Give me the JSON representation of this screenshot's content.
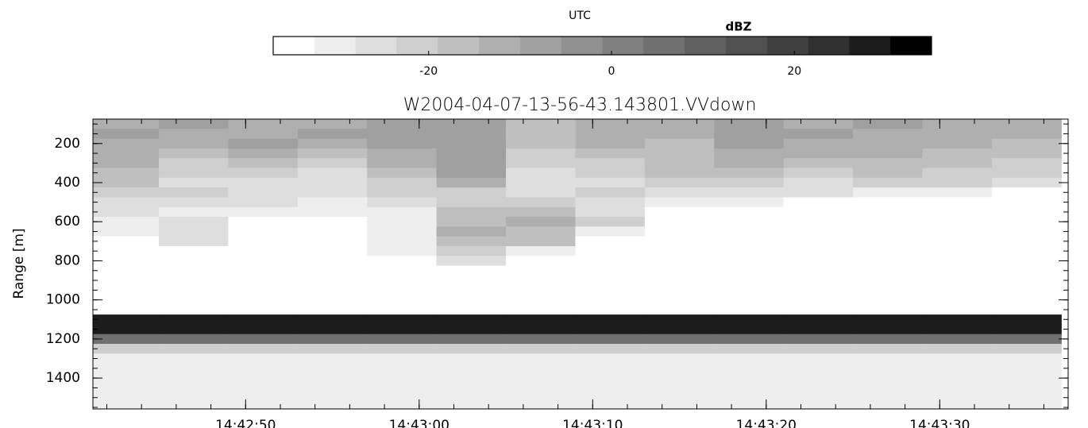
{
  "chart_data": {
    "type": "heatmap",
    "title": "W2004-04-07-13-56-43.143801.VVdown",
    "x_label": "UTC",
    "y_label": "Range [m]",
    "colorbar_label": "dBZ",
    "clim": [
      -37,
      35
    ],
    "cticks": [
      -20,
      0,
      20
    ],
    "colors": [
      "#ffffff",
      "#eeeeee",
      "#dedede",
      "#cfcfcf",
      "#bfbfbf",
      "#afafaf",
      "#a0a0a0",
      "#909090",
      "#808080",
      "#707070",
      "#606060",
      "#505050",
      "#404040",
      "#303030",
      "#1c1c1c",
      "#000000"
    ],
    "xlim": [
      41.2,
      97.4
    ],
    "xticks": [
      {
        "value": 50,
        "label": "14:42:50"
      },
      {
        "value": 60,
        "label": "14:43:00"
      },
      {
        "value": 70,
        "label": "14:43:10"
      },
      {
        "value": 80,
        "label": "14:43:20"
      },
      {
        "value": 90,
        "label": "14:43:30"
      }
    ],
    "ylim": [
      75,
      1558
    ],
    "yticks": [
      200,
      400,
      600,
      800,
      1000,
      1200,
      1400
    ],
    "y_inverted": true,
    "x": [
      43,
      47,
      51,
      55,
      59,
      63,
      67,
      71,
      75,
      79,
      83,
      87,
      91,
      95
    ],
    "y": [
      100,
      150,
      200,
      250,
      300,
      350,
      400,
      450,
      500,
      550,
      600,
      650,
      700,
      750,
      800,
      850,
      900,
      950,
      1000,
      1050,
      1100,
      1150,
      1200,
      1250,
      1300,
      1350,
      1400,
      1450,
      1500,
      1550
    ],
    "z": [
      [
        -12,
        -10,
        -14,
        -12,
        -10,
        -8,
        -18,
        -14,
        -12,
        -10,
        -12,
        -10,
        -14,
        -12
      ],
      [
        -10,
        -12,
        -12,
        -10,
        -8,
        -6,
        -16,
        -12,
        -14,
        -8,
        -10,
        -12,
        -12,
        -14
      ],
      [
        -14,
        -14,
        -10,
        -14,
        -10,
        -6,
        -18,
        -14,
        -16,
        -10,
        -12,
        -14,
        -12,
        -16
      ],
      [
        -12,
        -18,
        -14,
        -16,
        -12,
        -8,
        -20,
        -16,
        -18,
        -12,
        -14,
        -12,
        -16,
        -18
      ],
      [
        -14,
        -20,
        -16,
        -20,
        -14,
        -8,
        -22,
        -20,
        -16,
        -14,
        -16,
        -16,
        -18,
        -20
      ],
      [
        -16,
        -22,
        -22,
        -24,
        -16,
        -10,
        -24,
        -22,
        -18,
        -18,
        -20,
        -18,
        -20,
        -22
      ],
      [
        -18,
        -24,
        -26,
        -26,
        -20,
        -12,
        -26,
        -24,
        -20,
        -22,
        -24,
        -22,
        -22,
        -28
      ],
      [
        -20,
        -22,
        -24,
        -26,
        -22,
        -20,
        -24,
        -22,
        -24,
        -26,
        -28,
        -30,
        -32,
        -34
      ],
      [
        -24,
        -26,
        -28,
        -30,
        -26,
        -22,
        -20,
        -26,
        -30,
        -32,
        -34,
        -34,
        -35,
        -35
      ],
      [
        -28,
        -30,
        -32,
        -32,
        -30,
        -18,
        -16,
        -24,
        -34,
        -35,
        -35,
        -35,
        -35,
        -35
      ],
      [
        -30,
        -28,
        -33,
        -34,
        -32,
        -16,
        -14,
        -20,
        -35,
        -35,
        -35,
        -35,
        -35,
        -35
      ],
      [
        -30,
        -24,
        -34,
        -34,
        -30,
        -14,
        -16,
        -30,
        -35,
        -35,
        -35,
        -35,
        -35,
        -35
      ],
      [
        -33,
        -26,
        -35,
        -35,
        -30,
        -16,
        -18,
        -33,
        -35,
        -35,
        -35,
        -35,
        -35,
        -35
      ],
      [
        -35,
        -34,
        -35,
        -35,
        -32,
        -20,
        -30,
        -35,
        -35,
        -35,
        -35,
        -35,
        -35,
        -35
      ],
      [
        -35,
        -35,
        -35,
        -35,
        -34,
        -28,
        -34,
        -35,
        -35,
        -35,
        -35,
        -35,
        -35,
        -35
      ],
      [
        -35,
        -35,
        -35,
        -35,
        -35,
        -35,
        -35,
        -35,
        -35,
        -35,
        -35,
        -35,
        -35,
        -35
      ],
      [
        -35,
        -35,
        -35,
        -35,
        -35,
        -35,
        -35,
        -35,
        -35,
        -35,
        -35,
        -35,
        -35,
        -35
      ],
      [
        -35,
        -35,
        -35,
        -35,
        -35,
        -35,
        -35,
        -35,
        -35,
        -35,
        -35,
        -35,
        -35,
        -35
      ],
      [
        -35,
        -35,
        -35,
        -35,
        -35,
        -35,
        -35,
        -35,
        -35,
        -35,
        -35,
        -35,
        -35,
        -35
      ],
      [
        -34,
        -34,
        -34,
        -34,
        -34,
        -34,
        -34,
        -34,
        -34,
        -34,
        -34,
        -34,
        -34,
        -34
      ],
      [
        30,
        30,
        30,
        30,
        30,
        30,
        30,
        30,
        30,
        30,
        30,
        30,
        30,
        30
      ],
      [
        28,
        28,
        28,
        28,
        28,
        28,
        28,
        28,
        28,
        28,
        28,
        28,
        28,
        28
      ],
      [
        5,
        5,
        5,
        5,
        5,
        5,
        5,
        5,
        5,
        5,
        5,
        5,
        5,
        5
      ],
      [
        -22,
        -22,
        -22,
        -22,
        -22,
        -22,
        -22,
        -22,
        -22,
        -22,
        -22,
        -22,
        -22,
        -22
      ],
      [
        -32,
        -32,
        -32,
        -32,
        -32,
        -32,
        -32,
        -32,
        -32,
        -32,
        -32,
        -32,
        -32,
        -32
      ],
      [
        -32,
        -32,
        -32,
        -32,
        -32,
        -32,
        -32,
        -32,
        -32,
        -32,
        -32,
        -32,
        -32,
        -32
      ],
      [
        -32,
        -32,
        -32,
        -32,
        -32,
        -32,
        -32,
        -32,
        -32,
        -32,
        -32,
        -32,
        -32,
        -32
      ],
      [
        -32,
        -32,
        -32,
        -32,
        -32,
        -32,
        -32,
        -32,
        -32,
        -32,
        -32,
        -32,
        -32,
        -32
      ],
      [
        -32,
        -32,
        -32,
        -32,
        -32,
        -32,
        -32,
        -32,
        -32,
        -32,
        -32,
        -32,
        -32,
        -32
      ],
      [
        -32,
        -32,
        -32,
        -32,
        -32,
        -32,
        -32,
        -32,
        -32,
        -32,
        -32,
        -32,
        -32,
        -32
      ]
    ]
  }
}
